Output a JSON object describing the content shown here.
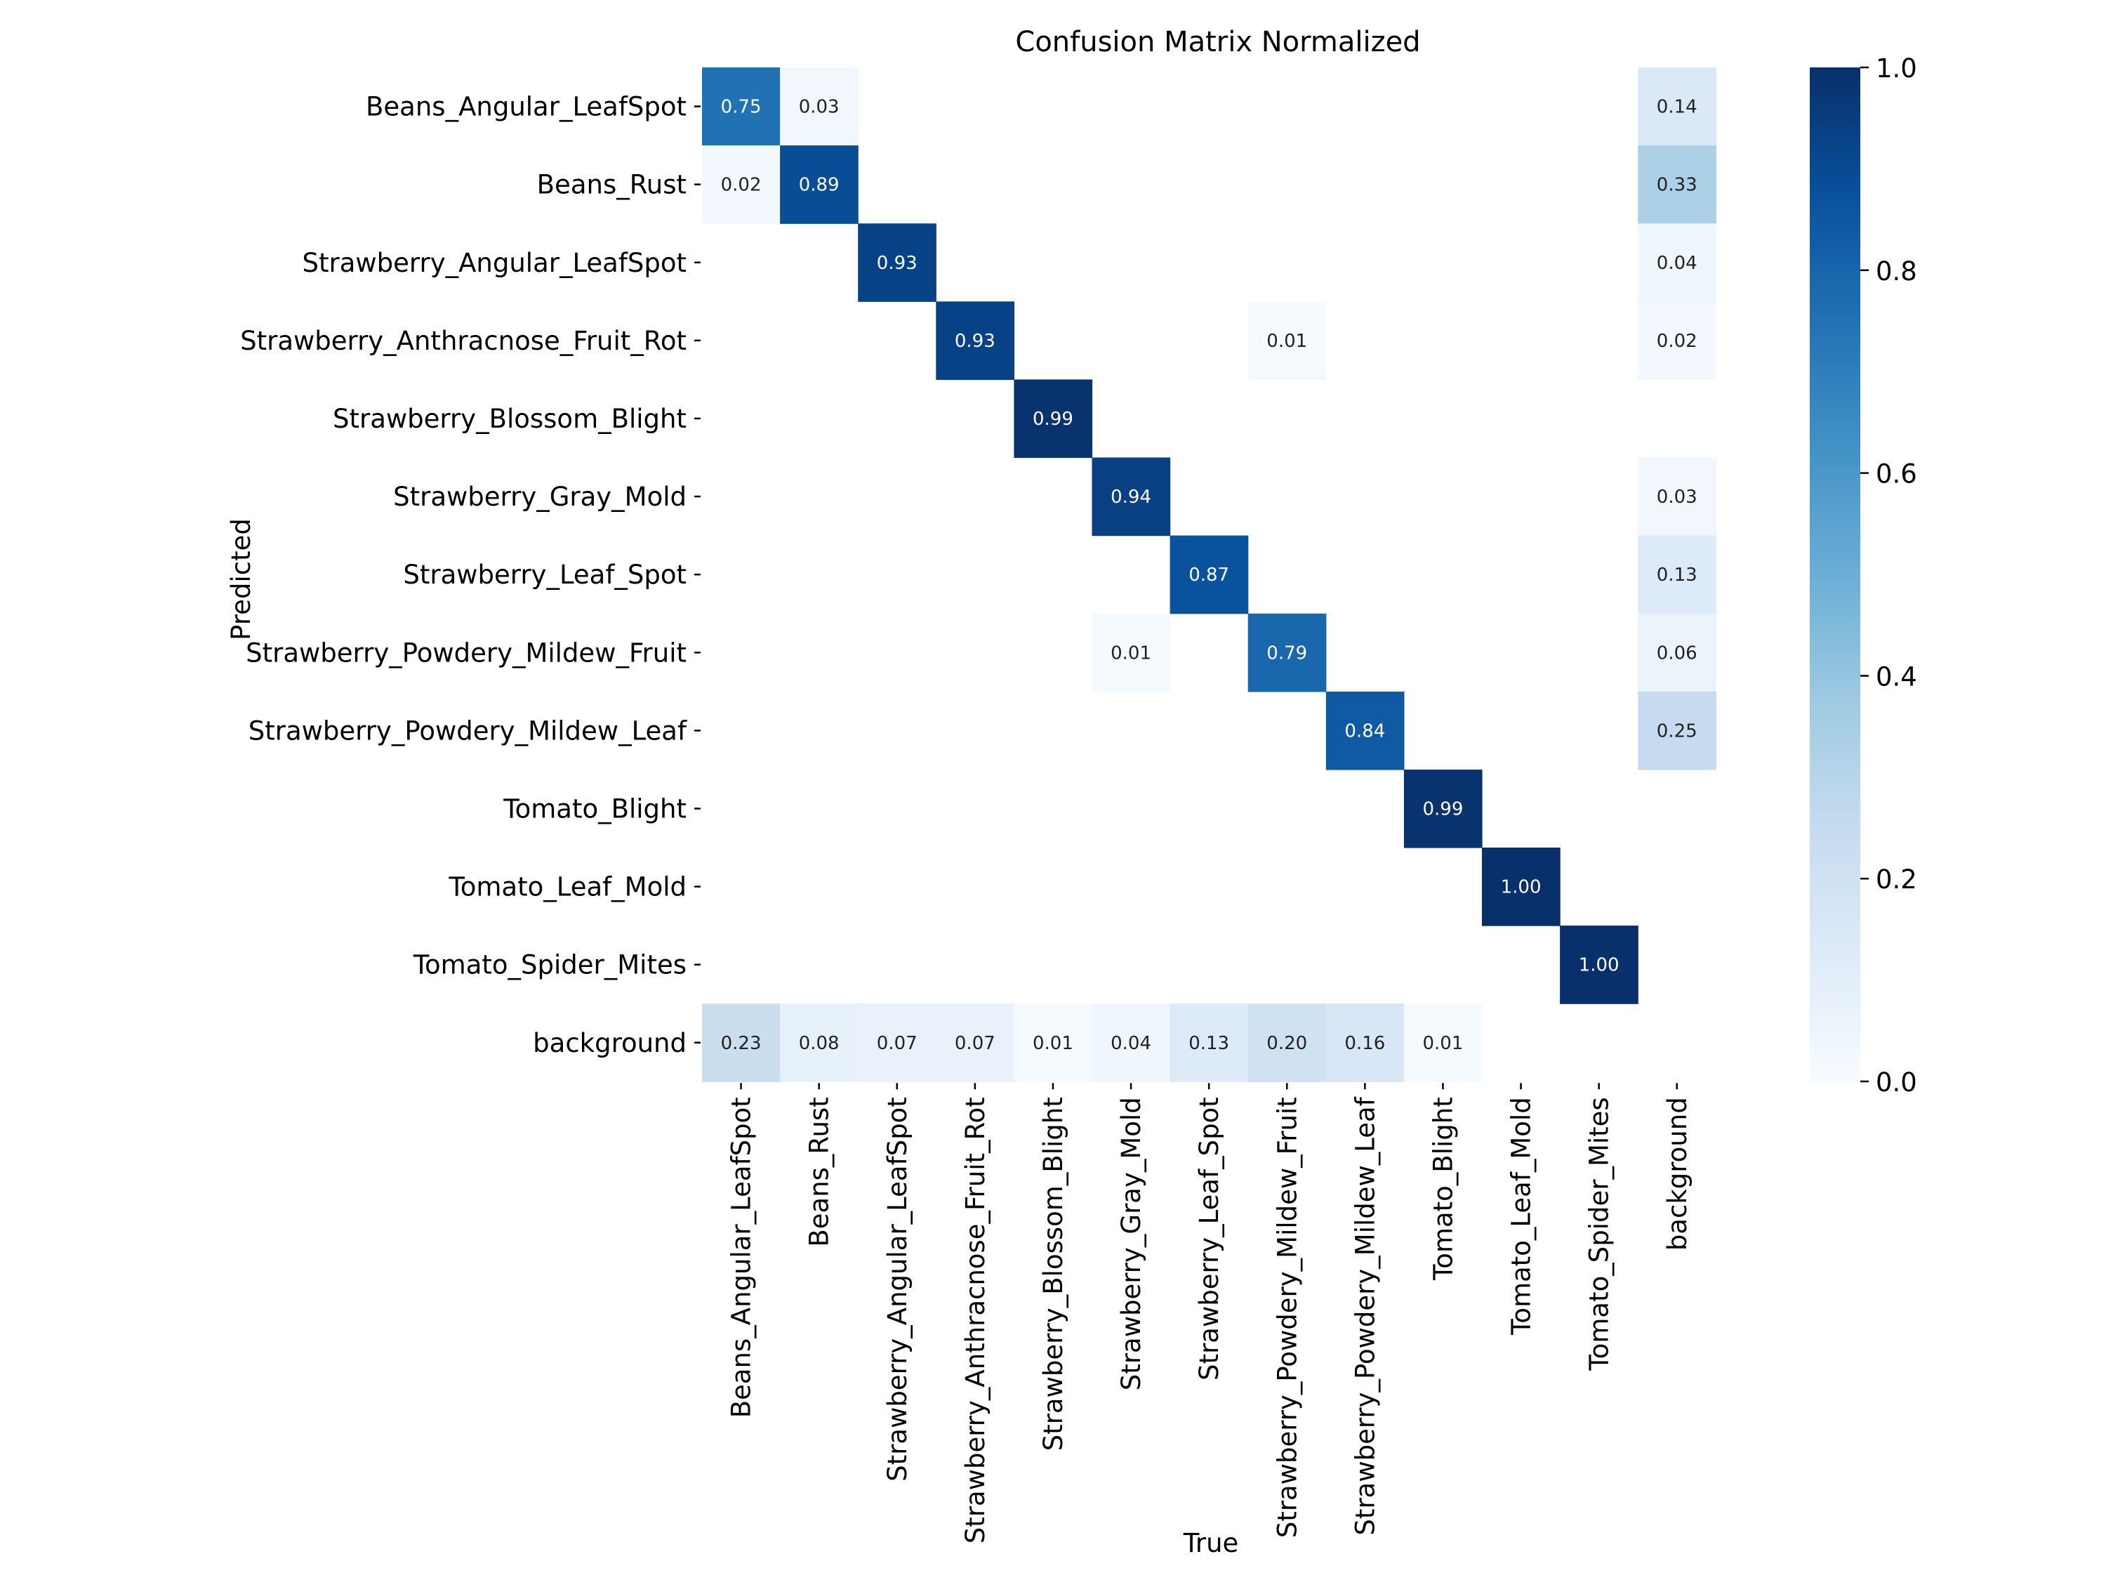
{
  "chart_data": {
    "type": "heatmap",
    "title": "Confusion Matrix Normalized",
    "xlabel": "True",
    "ylabel": "Predicted",
    "x_categories": [
      "Beans_Angular_LeafSpot",
      "Beans_Rust",
      "Strawberry_Angular_LeafSpot",
      "Strawberry_Anthracnose_Fruit_Rot",
      "Strawberry_Blossom_Blight",
      "Strawberry_Gray_Mold",
      "Strawberry_Leaf_Spot",
      "Strawberry_Powdery_Mildew_Fruit",
      "Strawberry_Powdery_Mildew_Leaf",
      "Tomato_Blight",
      "Tomato_Leaf_Mold",
      "Tomato_Spider_Mites",
      "background"
    ],
    "y_categories": [
      "Beans_Angular_LeafSpot",
      "Beans_Rust",
      "Strawberry_Angular_LeafSpot",
      "Strawberry_Anthracnose_Fruit_Rot",
      "Strawberry_Blossom_Blight",
      "Strawberry_Gray_Mold",
      "Strawberry_Leaf_Spot",
      "Strawberry_Powdery_Mildew_Fruit",
      "Strawberry_Powdery_Mildew_Leaf",
      "Tomato_Blight",
      "Tomato_Leaf_Mold",
      "Tomato_Spider_Mites",
      "background"
    ],
    "values": [
      [
        0.75,
        0.03,
        null,
        null,
        null,
        null,
        null,
        null,
        null,
        null,
        null,
        null,
        0.14
      ],
      [
        0.02,
        0.89,
        null,
        null,
        null,
        null,
        null,
        null,
        null,
        null,
        null,
        null,
        0.33
      ],
      [
        null,
        null,
        0.93,
        null,
        null,
        null,
        null,
        null,
        null,
        null,
        null,
        null,
        0.04
      ],
      [
        null,
        null,
        null,
        0.93,
        null,
        null,
        null,
        0.01,
        null,
        null,
        null,
        null,
        0.02
      ],
      [
        null,
        null,
        null,
        null,
        0.99,
        null,
        null,
        null,
        null,
        null,
        null,
        null,
        null
      ],
      [
        null,
        null,
        null,
        null,
        null,
        0.94,
        null,
        null,
        null,
        null,
        null,
        null,
        0.03
      ],
      [
        null,
        null,
        null,
        null,
        null,
        null,
        0.87,
        null,
        null,
        null,
        null,
        null,
        0.13
      ],
      [
        null,
        null,
        null,
        null,
        null,
        0.01,
        null,
        0.79,
        null,
        null,
        null,
        null,
        0.06
      ],
      [
        null,
        null,
        null,
        null,
        null,
        null,
        null,
        null,
        0.84,
        null,
        null,
        null,
        0.25
      ],
      [
        null,
        null,
        null,
        null,
        null,
        null,
        null,
        null,
        null,
        0.99,
        null,
        null,
        null
      ],
      [
        null,
        null,
        null,
        null,
        null,
        null,
        null,
        null,
        null,
        null,
        1.0,
        null,
        null
      ],
      [
        null,
        null,
        null,
        null,
        null,
        null,
        null,
        null,
        null,
        null,
        null,
        1.0,
        null
      ],
      [
        0.23,
        0.08,
        0.07,
        0.07,
        0.01,
        0.04,
        0.13,
        0.2,
        0.16,
        0.01,
        null,
        null,
        null
      ]
    ],
    "value_format": "0.00",
    "colormap": "Blues",
    "vmin": 0.0,
    "vmax": 1.0,
    "colorbar_ticks": [
      0.0,
      0.2,
      0.4,
      0.6,
      0.8,
      1.0
    ],
    "colorbar_tick_labels": [
      "0.0",
      "0.2",
      "0.4",
      "0.6",
      "0.8",
      "1.0"
    ],
    "grid": false
  }
}
